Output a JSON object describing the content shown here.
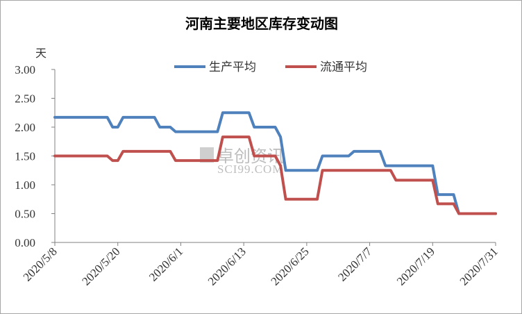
{
  "chart_data": {
    "type": "line",
    "title": "河南主要地区库存变动图",
    "ylabel": "天",
    "ylim": [
      0,
      3
    ],
    "yticks": [
      "0.00",
      "0.50",
      "1.00",
      "1.50",
      "2.00",
      "2.50",
      "3.00"
    ],
    "xticks": [
      "2020/5/8",
      "2020/5/20",
      "2020/6/1",
      "2020/6/13",
      "2020/6/25",
      "2020/7/7",
      "2020/7/19",
      "2020/7/31"
    ],
    "legend_position": "top-center",
    "grid": false,
    "series": [
      {
        "name": "生产平均",
        "color": "#4f81bd",
        "points": [
          [
            "2020/5/8",
            2.17
          ],
          [
            "2020/5/18",
            2.17
          ],
          [
            "2020/5/19",
            2.0
          ],
          [
            "2020/5/20",
            2.0
          ],
          [
            "2020/5/21",
            2.17
          ],
          [
            "2020/5/27",
            2.17
          ],
          [
            "2020/5/28",
            2.0
          ],
          [
            "2020/5/30",
            2.0
          ],
          [
            "2020/5/31",
            1.92
          ],
          [
            "2020/6/8",
            1.92
          ],
          [
            "2020/6/9",
            2.25
          ],
          [
            "2020/6/14",
            2.25
          ],
          [
            "2020/6/15",
            2.0
          ],
          [
            "2020/6/19",
            2.0
          ],
          [
            "2020/6/20",
            1.83
          ],
          [
            "2020/6/21",
            1.25
          ],
          [
            "2020/6/27",
            1.25
          ],
          [
            "2020/6/28",
            1.5
          ],
          [
            "2020/7/3",
            1.5
          ],
          [
            "2020/7/4",
            1.58
          ],
          [
            "2020/7/9",
            1.58
          ],
          [
            "2020/7/10",
            1.33
          ],
          [
            "2020/7/19",
            1.33
          ],
          [
            "2020/7/20",
            0.83
          ],
          [
            "2020/7/23",
            0.83
          ],
          [
            "2020/7/24",
            0.5
          ],
          [
            "2020/7/31",
            0.5
          ]
        ]
      },
      {
        "name": "流通平均",
        "color": "#c0504d",
        "points": [
          [
            "2020/5/8",
            1.5
          ],
          [
            "2020/5/18",
            1.5
          ],
          [
            "2020/5/19",
            1.42
          ],
          [
            "2020/5/20",
            1.42
          ],
          [
            "2020/5/21",
            1.58
          ],
          [
            "2020/5/30",
            1.58
          ],
          [
            "2020/5/31",
            1.42
          ],
          [
            "2020/6/8",
            1.42
          ],
          [
            "2020/6/9",
            1.83
          ],
          [
            "2020/6/14",
            1.83
          ],
          [
            "2020/6/15",
            1.5
          ],
          [
            "2020/6/19",
            1.5
          ],
          [
            "2020/6/20",
            1.33
          ],
          [
            "2020/6/21",
            0.75
          ],
          [
            "2020/6/27",
            0.75
          ],
          [
            "2020/6/28",
            1.25
          ],
          [
            "2020/7/11",
            1.25
          ],
          [
            "2020/7/12",
            1.08
          ],
          [
            "2020/7/19",
            1.08
          ],
          [
            "2020/7/20",
            0.67
          ],
          [
            "2020/7/23",
            0.67
          ],
          [
            "2020/7/24",
            0.5
          ],
          [
            "2020/7/31",
            0.5
          ]
        ]
      }
    ]
  },
  "watermark": {
    "cn": "卓创资讯",
    "en": "SCI99.COM"
  }
}
